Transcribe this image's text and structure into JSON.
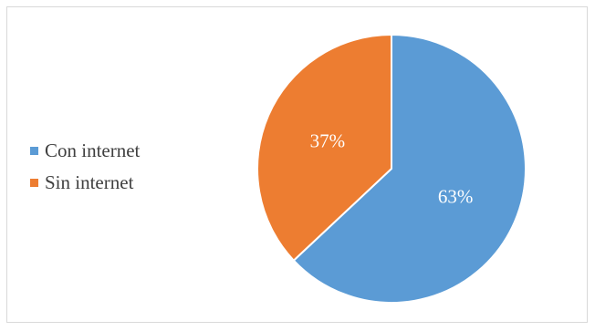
{
  "chart_data": {
    "type": "pie",
    "categories": [
      "Con internet",
      "Sin internet"
    ],
    "values": [
      63,
      37
    ],
    "labels": [
      "63%",
      "37%"
    ],
    "colors": [
      "#5b9bd5",
      "#ed7d31"
    ],
    "legend": "left",
    "start_angle_deg": 0,
    "direction": "clockwise"
  }
}
